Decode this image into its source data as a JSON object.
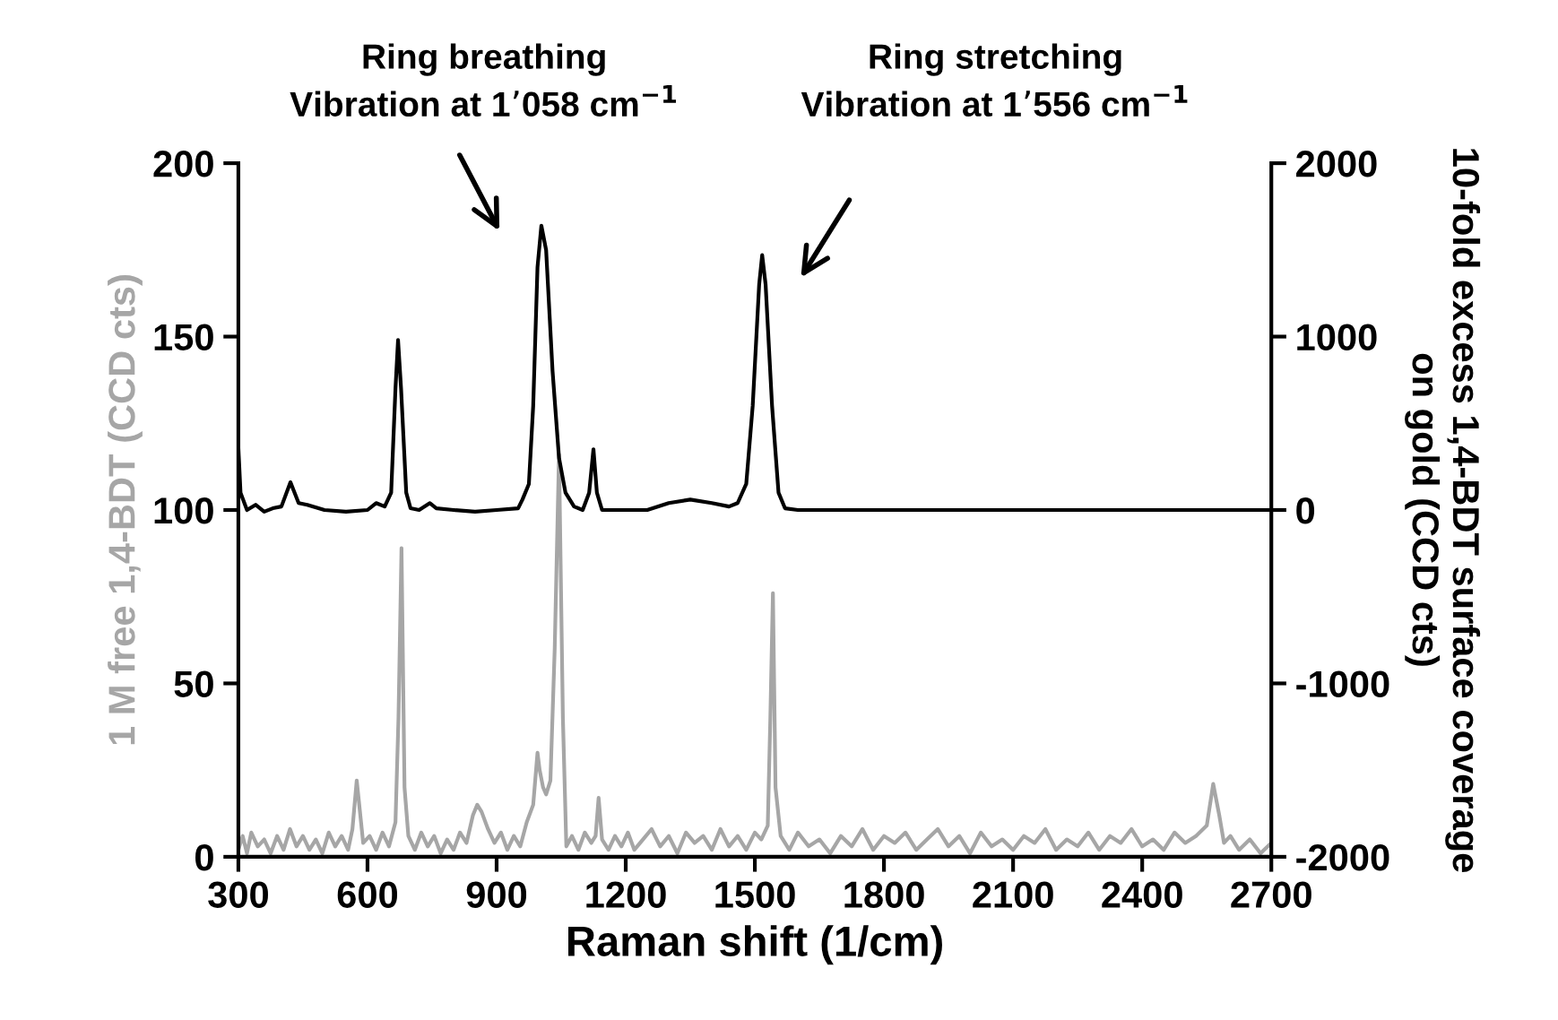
{
  "chart_data": {
    "type": "line",
    "xlabel": "Raman shift (1/cm)",
    "ylabel": "1 M free 1,4-BDT (CCD cts)",
    "y2label": "10-fold excess 1,4-BDT surface coverage\non gold (CCD cts)",
    "xlim": [
      300,
      2700
    ],
    "xticks": [
      300,
      600,
      900,
      1200,
      1500,
      1800,
      2100,
      2400,
      2700
    ],
    "ylim": [
      0,
      200
    ],
    "yticks": [
      0,
      50,
      100,
      150,
      200
    ],
    "y2lim": [
      -2000,
      2000
    ],
    "y2ticks": [
      -2000,
      -1000,
      0,
      1000,
      2000
    ],
    "grid": false,
    "legend": false,
    "annotations": [
      "Ring breathing\nVibration at 1’058 cm$^{−1}$",
      "Ring stretching\nVibration at 1’556 cm$^{−1}$"
    ],
    "series": [
      {
        "color": "#a6a6a6",
        "x": [
          300,
          310,
          320,
          330,
          345,
          360,
          375,
          390,
          405,
          420,
          435,
          450,
          465,
          480,
          495,
          510,
          525,
          540,
          555,
          565,
          575,
          590,
          605,
          620,
          635,
          650,
          665,
          672,
          679,
          686,
          695,
          710,
          725,
          740,
          755,
          770,
          785,
          800,
          815,
          830,
          845,
          855,
          865,
          880,
          895,
          910,
          925,
          940,
          955,
          970,
          985,
          995,
          1000,
          1008,
          1015,
          1025,
          1035,
          1045,
          1054,
          1062,
          1075,
          1090,
          1105,
          1120,
          1130,
          1137,
          1145,
          1160,
          1175,
          1190,
          1205,
          1220,
          1240,
          1260,
          1280,
          1300,
          1320,
          1340,
          1360,
          1380,
          1400,
          1420,
          1440,
          1460,
          1480,
          1500,
          1515,
          1530,
          1536,
          1542,
          1548,
          1560,
          1580,
          1600,
          1625,
          1650,
          1675,
          1700,
          1725,
          1750,
          1775,
          1800,
          1825,
          1850,
          1875,
          1900,
          1925,
          1950,
          1975,
          2000,
          2025,
          2050,
          2075,
          2100,
          2125,
          2150,
          2175,
          2200,
          2225,
          2250,
          2275,
          2300,
          2325,
          2350,
          2375,
          2400,
          2425,
          2450,
          2475,
          2500,
          2525,
          2550,
          2565,
          2579,
          2590,
          2605,
          2625,
          2650,
          2675,
          2700
        ],
        "values": [
          2,
          6,
          1,
          7,
          3,
          5,
          1,
          6,
          2,
          8,
          3,
          6,
          2,
          5,
          1,
          7,
          3,
          6,
          2,
          8,
          22,
          4,
          6,
          2,
          7,
          3,
          10,
          40,
          89,
          20,
          6,
          2,
          7,
          3,
          6,
          1,
          5,
          2,
          7,
          4,
          12,
          15,
          13,
          8,
          4,
          7,
          2,
          6,
          3,
          10,
          15,
          30,
          25,
          20,
          18,
          22,
          60,
          116,
          40,
          3,
          6,
          2,
          7,
          4,
          6,
          17,
          5,
          2,
          6,
          3,
          7,
          2,
          5,
          8,
          3,
          6,
          1,
          7,
          4,
          6,
          2,
          8,
          3,
          6,
          2,
          7,
          5,
          9,
          40,
          76,
          20,
          6,
          2,
          7,
          3,
          5,
          1,
          6,
          3,
          8,
          2,
          6,
          4,
          7,
          2,
          5,
          8,
          3,
          6,
          1,
          7,
          3,
          5,
          2,
          6,
          4,
          8,
          2,
          5,
          3,
          7,
          2,
          6,
          4,
          8,
          3,
          5,
          2,
          7,
          4,
          6,
          9,
          21,
          12,
          4,
          6,
          2,
          5,
          1,
          4
        ]
      },
      {
        "color": "#000000",
        "axis": "y2",
        "x": [
          300,
          305,
          320,
          340,
          360,
          380,
          400,
          421,
          440,
          460,
          500,
          550,
          600,
          620,
          640,
          655,
          665,
          671,
          678,
          690,
          700,
          720,
          745,
          760,
          800,
          850,
          900,
          950,
          960,
          975,
          985,
          995,
          1004,
          1015,
          1030,
          1045,
          1060,
          1080,
          1100,
          1115,
          1125,
          1133,
          1145,
          1200,
          1250,
          1300,
          1350,
          1400,
          1440,
          1460,
          1480,
          1495,
          1510,
          1517,
          1525,
          1540,
          1555,
          1570,
          1600,
          1700,
          1800,
          1900,
          2000,
          2100,
          2200,
          2300,
          2400,
          2500,
          2600,
          2700
        ],
        "values": [
          360,
          100,
          0,
          30,
          -10,
          10,
          20,
          160,
          40,
          30,
          0,
          -10,
          0,
          40,
          20,
          100,
          700,
          980,
          700,
          100,
          10,
          0,
          40,
          10,
          0,
          -10,
          0,
          10,
          60,
          150,
          600,
          1400,
          1640,
          1500,
          800,
          300,
          100,
          20,
          0,
          100,
          350,
          100,
          0,
          0,
          0,
          40,
          60,
          40,
          20,
          40,
          150,
          600,
          1300,
          1470,
          1300,
          600,
          100,
          10,
          0,
          0,
          0,
          0,
          0,
          0,
          0,
          0,
          0,
          0,
          0,
          0
        ]
      }
    ]
  }
}
